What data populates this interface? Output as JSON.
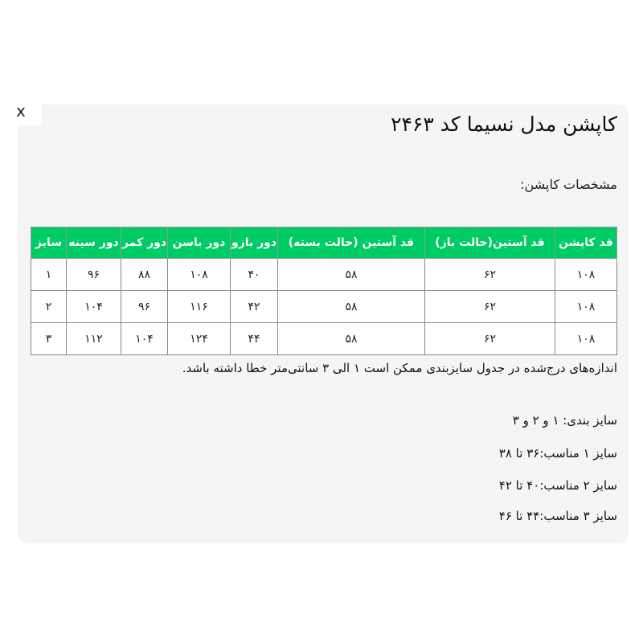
{
  "dialog": {
    "close_label": "x",
    "title": "کاپشن مدل نسیما کد ۲۴۶۳",
    "subtitle": "مشخصات کاپشن:",
    "accent_color": "#00cc66"
  },
  "table": {
    "headers": [
      "قد کاپشن",
      "قد آستین(حالت باز)",
      "قد آستین (حالت بسته)",
      "دور بازو",
      "دور باسن",
      "دور کمر",
      "دور سینه",
      "سایز"
    ],
    "rows": [
      [
        "۱۰۸",
        "۶۲",
        "۵۸",
        "۴۰",
        "۱۰۸",
        "۸۸",
        "۹۶",
        "۱"
      ],
      [
        "۱۰۸",
        "۶۲",
        "۵۸",
        "۴۲",
        "۱۱۶",
        "۹۶",
        "۱۰۴",
        "۲"
      ],
      [
        "۱۰۸",
        "۶۲",
        "۵۸",
        "۴۴",
        "۱۲۴",
        "۱۰۴",
        "۱۱۲",
        "۳"
      ]
    ]
  },
  "note": "اندازه‌های درج‌شده در جدول سایزبندی ممکن است ۱ الی ۳ سانتی‌متر خطا داشته باشد.",
  "sizing": [
    "سایز بندی: ۱ و ۲ و ۳",
    "سایز ۱ مناسب:۳۶ تا ۳۸",
    "سایز ۲ مناسب:۴۰ تا ۴۲",
    "سایز ۳ مناسب:۴۴ تا ۴۶"
  ]
}
